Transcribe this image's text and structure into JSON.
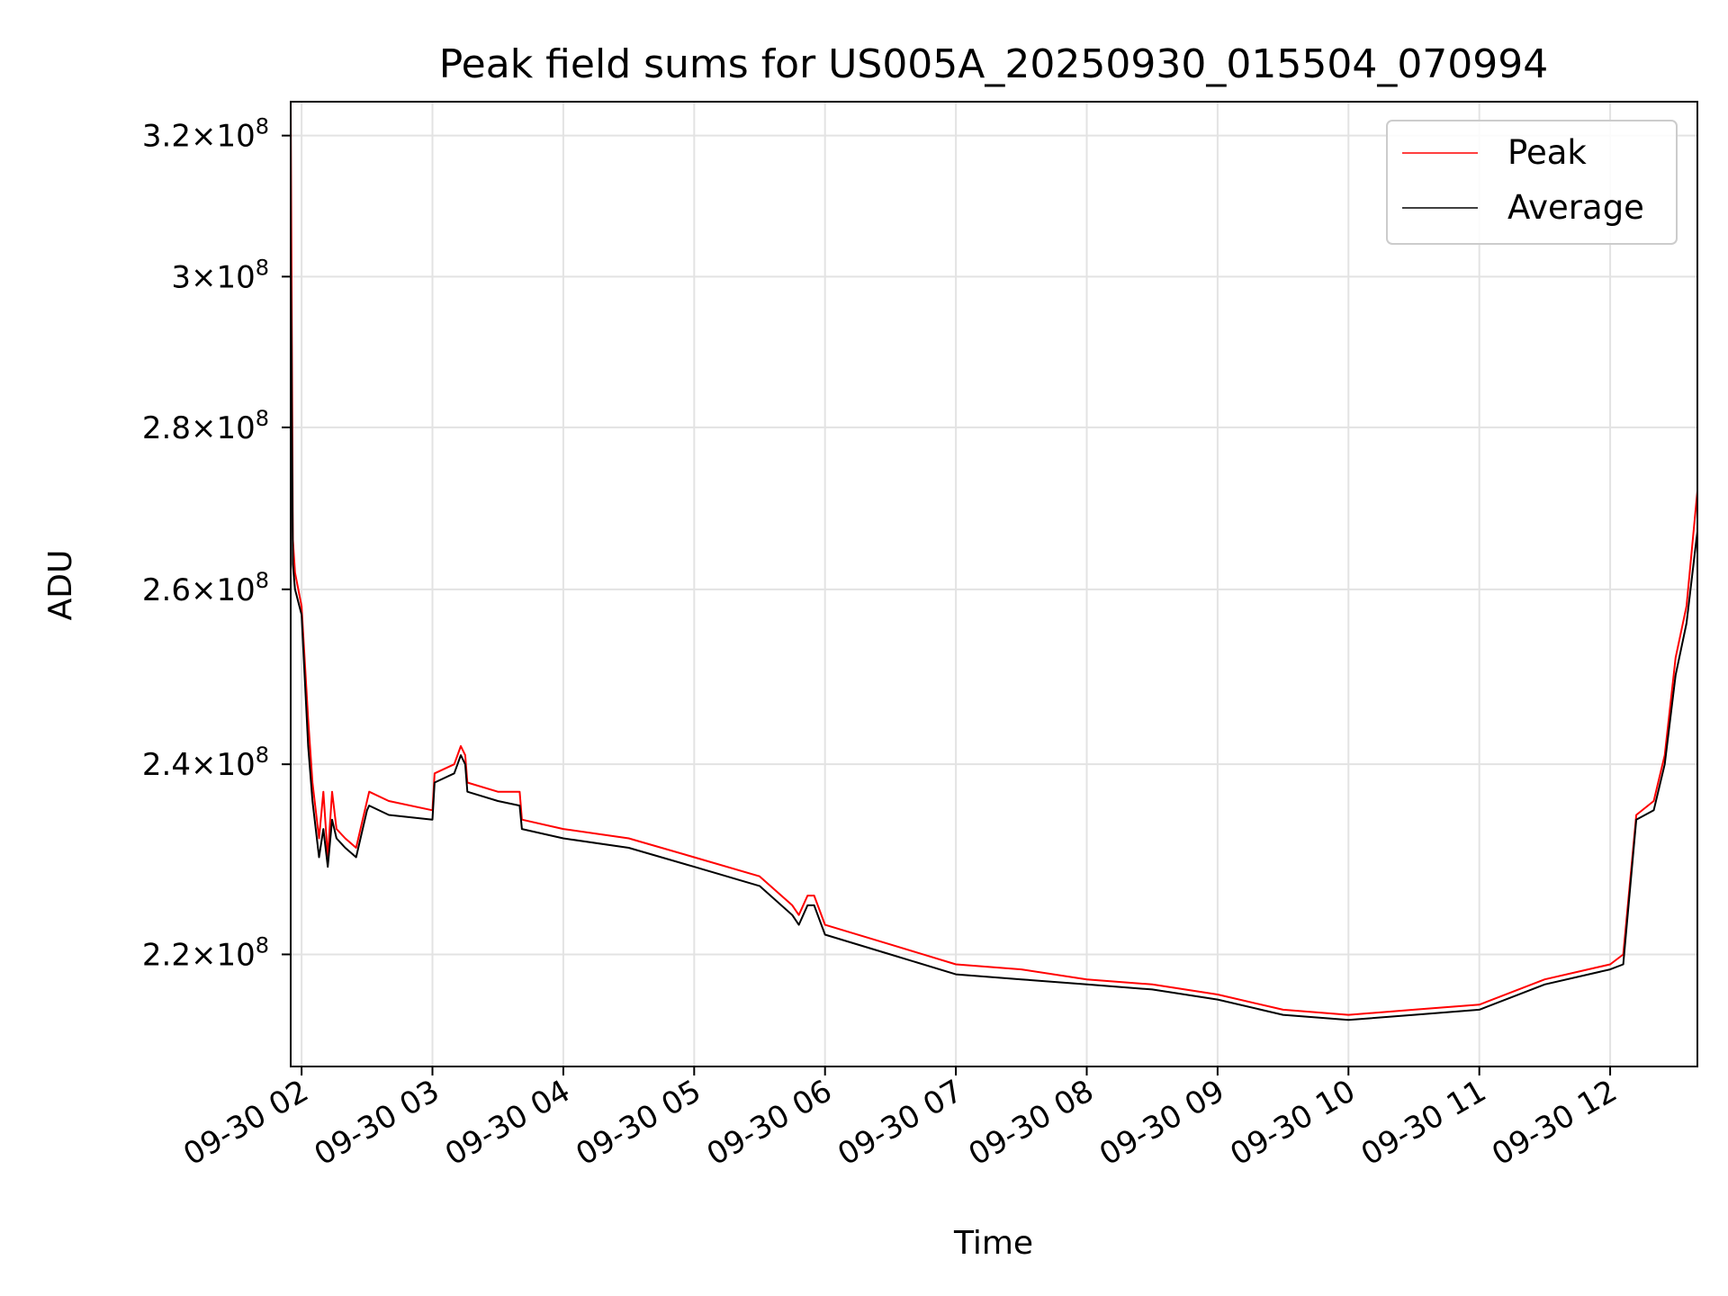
{
  "chart_data": {
    "type": "line",
    "title": "Peak field sums for US005A_20250930_015504_070994",
    "xlabel": "Time",
    "ylabel": "ADU",
    "yscale": "log",
    "grid": true,
    "legend_position": "top-right",
    "xlim": [
      "09-30 01:55",
      "09-30 12:40"
    ],
    "ylim": [
      209000000.0,
      325000000.0
    ],
    "x_ticks": [
      {
        "value": "09-30 02:00",
        "label": "09-30 02"
      },
      {
        "value": "09-30 03:00",
        "label": "09-30 03"
      },
      {
        "value": "09-30 04:00",
        "label": "09-30 04"
      },
      {
        "value": "09-30 05:00",
        "label": "09-30 05"
      },
      {
        "value": "09-30 06:00",
        "label": "09-30 06"
      },
      {
        "value": "09-30 07:00",
        "label": "09-30 07"
      },
      {
        "value": "09-30 08:00",
        "label": "09-30 08"
      },
      {
        "value": "09-30 09:00",
        "label": "09-30 09"
      },
      {
        "value": "09-30 10:00",
        "label": "09-30 10"
      },
      {
        "value": "09-30 11:00",
        "label": "09-30 11"
      },
      {
        "value": "09-30 12:00",
        "label": "09-30 12"
      }
    ],
    "y_ticks": [
      {
        "value": 220000000.0,
        "mantissa": "2.2",
        "base": "10",
        "exp": "8"
      },
      {
        "value": 240000000.0,
        "mantissa": "2.4",
        "base": "10",
        "exp": "8"
      },
      {
        "value": 260000000.0,
        "mantissa": "2.6",
        "base": "10",
        "exp": "8"
      },
      {
        "value": 280000000.0,
        "mantissa": "2.8",
        "base": "10",
        "exp": "8"
      },
      {
        "value": 300000000.0,
        "mantissa": "3",
        "base": "10",
        "exp": "8"
      },
      {
        "value": 320000000.0,
        "mantissa": "3.2",
        "base": "10",
        "exp": "8"
      }
    ],
    "x": [
      "09-30 01:55",
      "09-30 01:56",
      "09-30 01:57",
      "09-30 02:00",
      "09-30 02:03",
      "09-30 02:05",
      "09-30 02:08",
      "09-30 02:10",
      "09-30 02:12",
      "09-30 02:14",
      "09-30 02:16",
      "09-30 02:20",
      "09-30 02:25",
      "09-30 02:30",
      "09-30 02:31",
      "09-30 02:40",
      "09-30 03:00",
      "09-30 03:01",
      "09-30 03:10",
      "09-30 03:13",
      "09-30 03:15",
      "09-30 03:16",
      "09-30 03:30",
      "09-30 03:40",
      "09-30 03:41",
      "09-30 04:00",
      "09-30 04:30",
      "09-30 05:00",
      "09-30 05:30",
      "09-30 05:45",
      "09-30 05:48",
      "09-30 05:52",
      "09-30 05:55",
      "09-30 06:00",
      "09-30 06:30",
      "09-30 07:00",
      "09-30 07:30",
      "09-30 08:00",
      "09-30 08:30",
      "09-30 09:00",
      "09-30 09:30",
      "09-30 10:00",
      "09-30 10:30",
      "09-30 11:00",
      "09-30 11:30",
      "09-30 12:00",
      "09-30 12:06",
      "09-30 12:12",
      "09-30 12:20",
      "09-30 12:25",
      "09-30 12:30",
      "09-30 12:35",
      "09-30 12:40"
    ],
    "series": [
      {
        "name": "Peak",
        "color": "#ff0000",
        "values": [
          325000000.0,
          266000000.0,
          262000000.0,
          258000000.0,
          245000000.0,
          238000000.0,
          232000000.0,
          237000000.0,
          230000000.0,
          237000000.0,
          233000000.0,
          232000000.0,
          231000000.0,
          236000000.0,
          237000000.0,
          236000000.0,
          235000000.0,
          239000000.0,
          240000000.0,
          242000000.0,
          241000000.0,
          238000000.0,
          237000000.0,
          237000000.0,
          234000000.0,
          233000000.0,
          232000000.0,
          230000000.0,
          228000000.0,
          225000000.0,
          224000000.0,
          226000000.0,
          226000000.0,
          223000000.0,
          221000000.0,
          219000000.0,
          218500000.0,
          217500000.0,
          217000000.0,
          216000000.0,
          214500000.0,
          214000000.0,
          214500000.0,
          215000000.0,
          217500000.0,
          219000000.0,
          220000000.0,
          234500000.0,
          236000000.0,
          241000000.0,
          252000000.0,
          258000000.0,
          272000000.0
        ]
      },
      {
        "name": "Average",
        "color": "#000000",
        "values": [
          305000000.0,
          263000000.0,
          260000000.0,
          257000000.0,
          242000000.0,
          236000000.0,
          230000000.0,
          233000000.0,
          229000000.0,
          234000000.0,
          232000000.0,
          231000000.0,
          230000000.0,
          235000000.0,
          235500000.0,
          234500000.0,
          234000000.0,
          238000000.0,
          239000000.0,
          241000000.0,
          240000000.0,
          237000000.0,
          236000000.0,
          235500000.0,
          233000000.0,
          232000000.0,
          231000000.0,
          229000000.0,
          227000000.0,
          224000000.0,
          223000000.0,
          225000000.0,
          225000000.0,
          222000000.0,
          220000000.0,
          218000000.0,
          217500000.0,
          217000000.0,
          216500000.0,
          215500000.0,
          214000000.0,
          213500000.0,
          214000000.0,
          214500000.0,
          217000000.0,
          218500000.0,
          219000000.0,
          234000000.0,
          235000000.0,
          240000000.0,
          250000000.0,
          256000000.0,
          267000000.0
        ]
      }
    ]
  }
}
